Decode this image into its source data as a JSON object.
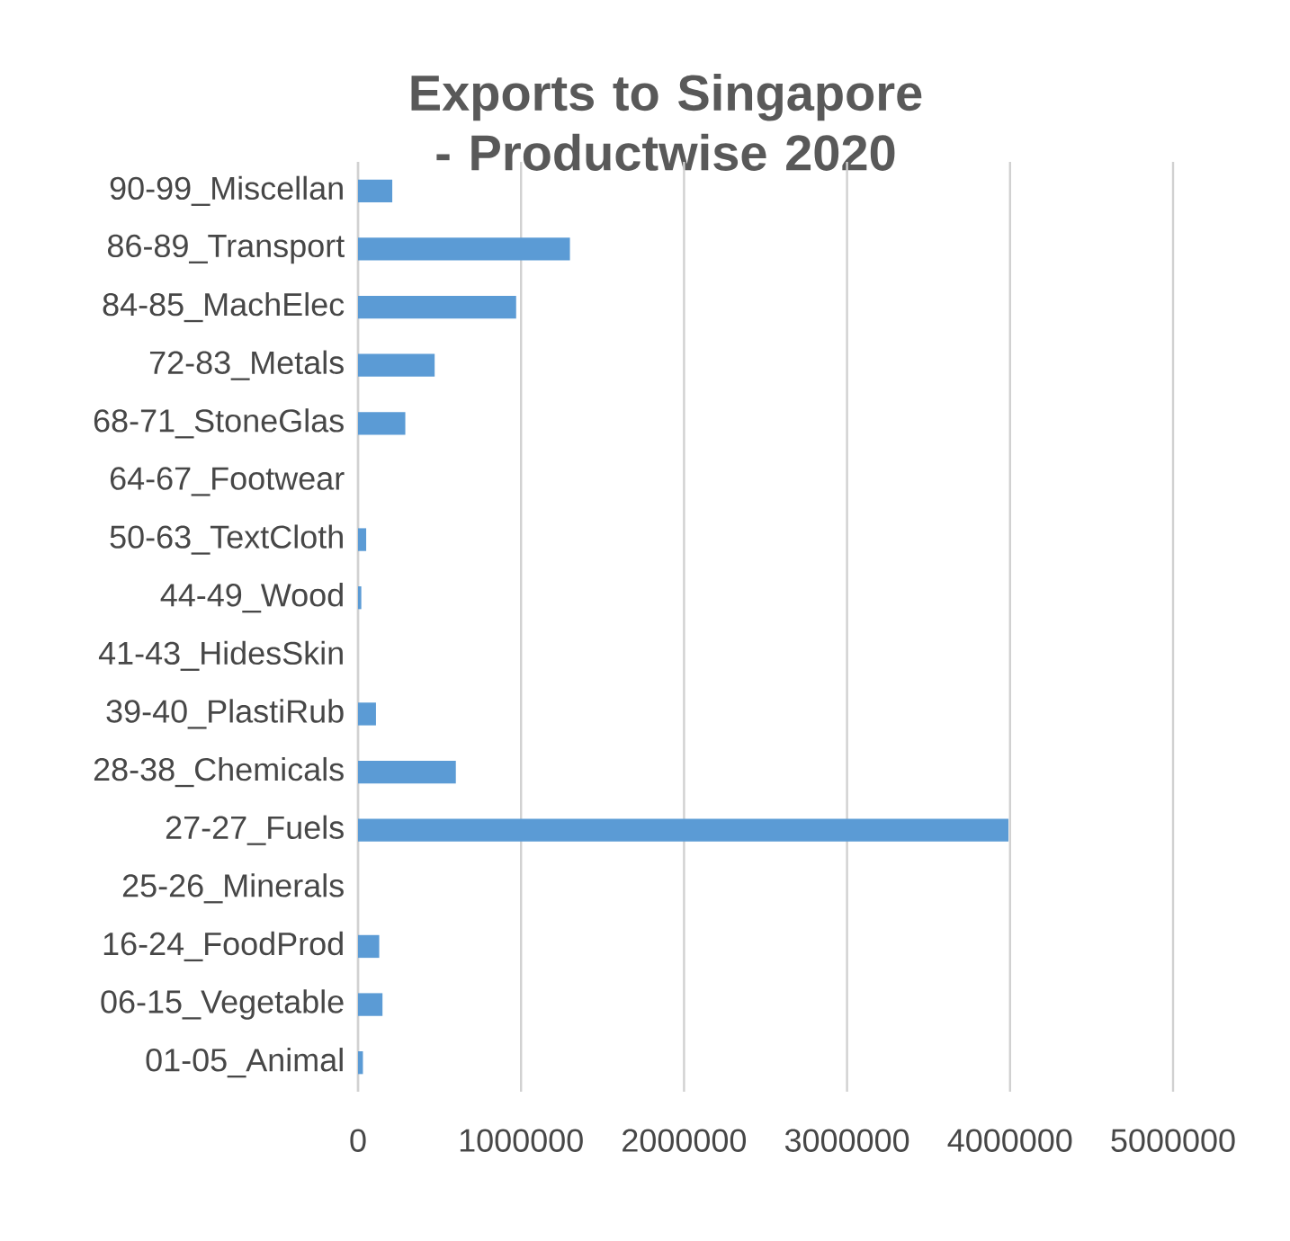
{
  "chart_data": {
    "type": "bar",
    "orientation": "horizontal",
    "title": "Exports to Singapore - Productwise 2020",
    "categories": [
      "90-99_Miscellan",
      "86-89_Transport",
      "84-85_MachElec",
      "72-83_Metals",
      "68-71_StoneGlas",
      "64-67_Footwear",
      "50-63_TextCloth",
      "44-49_Wood",
      "41-43_HidesSkin",
      "39-40_PlastiRub",
      "28-38_Chemicals",
      "27-27_Fuels",
      "25-26_Minerals",
      "16-24_FoodProd",
      "06-15_Vegetable",
      "01-05_Animal"
    ],
    "values": [
      210000,
      1300000,
      970000,
      470000,
      290000,
      0,
      50000,
      20000,
      0,
      110000,
      600000,
      3990000,
      0,
      130000,
      150000,
      30000
    ],
    "color": "#5b9bd5",
    "xlim": [
      0,
      5000000
    ],
    "xticks": [
      0,
      1000000,
      2000000,
      3000000,
      4000000,
      5000000
    ],
    "grid": "x"
  }
}
